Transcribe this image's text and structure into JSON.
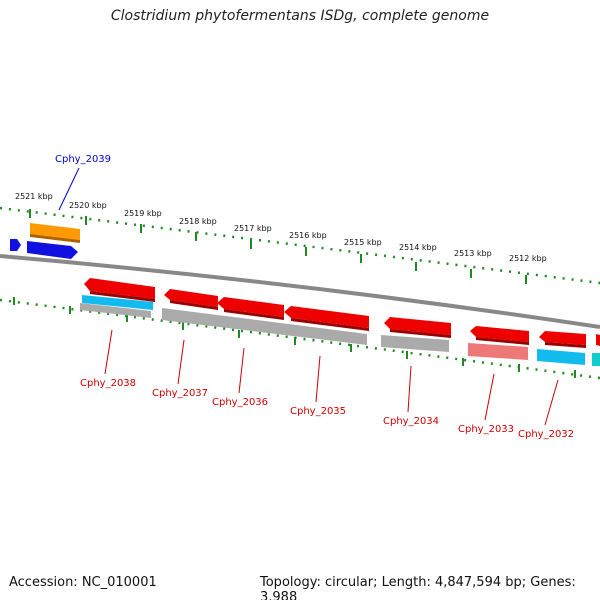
{
  "title": "Clostridium phytofermentans ISDg, complete genome",
  "footer": {
    "accession": "Accession: NC_010001",
    "summary": "Topology: circular; Length: 4,847,594 bp; Genes: 3,988"
  },
  "ticks": [
    "2521 kbp",
    "2520 kbp",
    "2519 kbp",
    "2518 kbp",
    "2517 kbp",
    "2516 kbp",
    "2515 kbp",
    "2514 kbp",
    "2513 kbp",
    "2512 kbp"
  ],
  "gene_labels": [
    "Cphy_2039",
    "Cphy_2038",
    "Cphy_2037",
    "Cphy_2036",
    "Cphy_2035",
    "Cphy_2034",
    "Cphy_2033",
    "Cphy_2032"
  ],
  "colors": {
    "forward_label": "#0000cc",
    "reverse_label": "#cc0000",
    "gene_red": "#ee0000",
    "gene_blue": "#1010e0",
    "gene_orange": "#ff9900",
    "gene_cyan": "#11bbee",
    "gene_gray": "#aaaaaa",
    "gene_pink": "#ee7777",
    "gene_teal": "#11cccc",
    "tick_green": "#228822",
    "backbone": "#888888"
  }
}
